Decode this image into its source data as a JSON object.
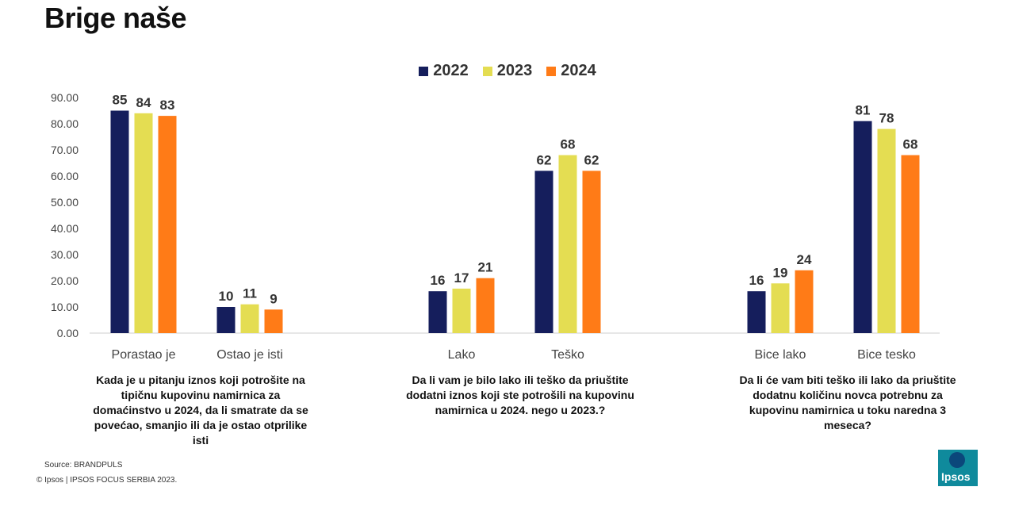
{
  "title": "Brige naše",
  "legend": [
    {
      "label": "2022",
      "color": "#151e5c"
    },
    {
      "label": "2023",
      "color": "#e4dd52"
    },
    {
      "label": "2024",
      "color": "#ff7b17"
    }
  ],
  "chart_data": {
    "type": "bar",
    "title": "",
    "xlabel": "",
    "ylabel": "",
    "ylim": [
      0,
      90
    ],
    "yticks": [
      "0.00",
      "10.00",
      "20.00",
      "30.00",
      "40.00",
      "50.00",
      "60.00",
      "70.00",
      "80.00",
      "90.00"
    ],
    "grid": false,
    "legend_position": "top-center",
    "categories": [
      "Porastao je",
      "Ostao je isti",
      "Lako",
      "Teško",
      "Bice lako",
      "Bice tesko"
    ],
    "series": [
      {
        "name": "2022",
        "color": "#151e5c",
        "values": [
          85,
          10,
          16,
          62,
          16,
          81
        ]
      },
      {
        "name": "2023",
        "color": "#e4dd52",
        "values": [
          84,
          11,
          17,
          68,
          19,
          78
        ]
      },
      {
        "name": "2024",
        "color": "#ff7b17",
        "values": [
          83,
          9,
          21,
          62,
          24,
          68
        ]
      }
    ]
  },
  "questions": [
    "Kada je u pitanju iznos koji potrošite na tipičnu kupovinu namirnica za domaćinstvo u 2024, da li smatrate da se povećao, smanjio ili da je ostao otprilike isti",
    "Da li vam je bilo lako ili teško da priuštite dodatni iznos koji ste potrošili na kupovinu namirnica u 2024. nego u 2023.?",
    "Da li će vam biti teško ili lako da priuštite dodatnu količinu novca potrebnu za kupovinu namirnica u toku naredna 3 meseca?"
  ],
  "footer": {
    "source": "Source: BRANDPULS",
    "copyright": "© Ipsos | IPSOS FOCUS SERBIA 2023.",
    "logo_text": "Ipsos"
  }
}
